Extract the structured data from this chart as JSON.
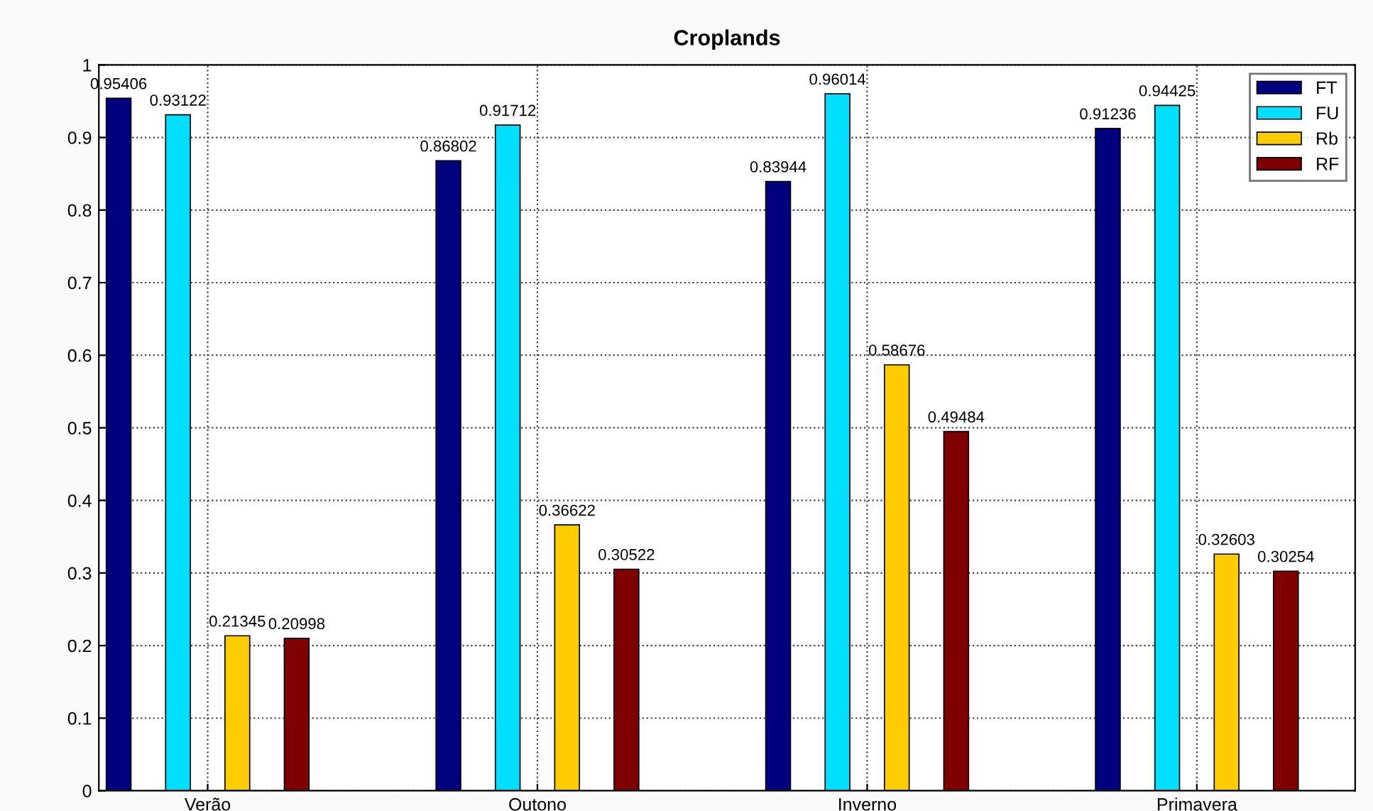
{
  "chart_data": {
    "type": "bar",
    "title": "Croplands",
    "categories": [
      "Verão",
      "Outono",
      "Inverno",
      "Primavera"
    ],
    "series": [
      {
        "name": "FT",
        "color": "#00007f",
        "values": [
          0.95406,
          0.86802,
          0.83944,
          0.91236
        ]
      },
      {
        "name": "FU",
        "color": "#00dfff",
        "values": [
          0.93122,
          0.91712,
          0.96014,
          0.94425
        ]
      },
      {
        "name": "Rb",
        "color": "#ffcc00",
        "values": [
          0.21345,
          0.36622,
          0.58676,
          0.32603
        ]
      },
      {
        "name": "RF",
        "color": "#7f0000",
        "values": [
          0.20998,
          0.30522,
          0.49484,
          0.30254
        ]
      }
    ],
    "ylim": [
      0,
      1
    ],
    "yticks": [
      0,
      0.1,
      0.2,
      0.3,
      0.4,
      0.5,
      0.6,
      0.7,
      0.8,
      0.9,
      1
    ],
    "grid": true,
    "legend": "top right",
    "data_labels": true
  }
}
